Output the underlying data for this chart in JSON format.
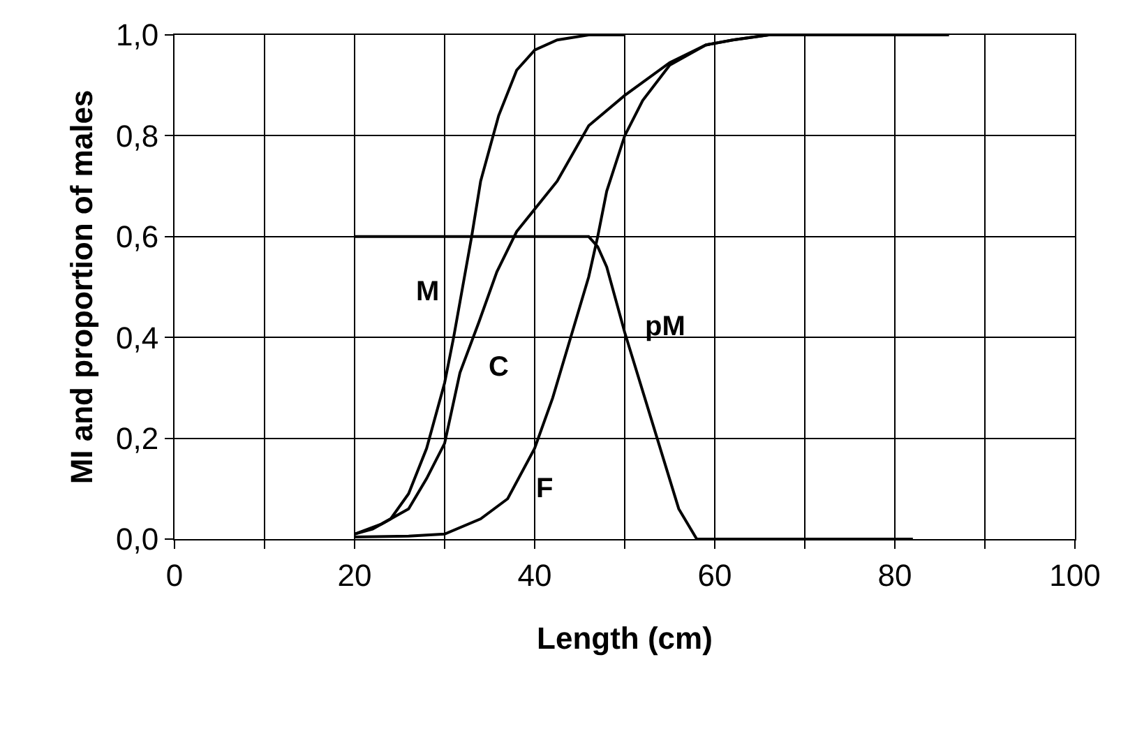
{
  "chart_data": {
    "type": "line",
    "xlabel": "Length (cm)",
    "ylabel": "MI and proportion of males",
    "series": [
      {
        "name": "M",
        "color": "#000000",
        "x": [
          20,
          22,
          24,
          26,
          28,
          30,
          31,
          32,
          33,
          34,
          36,
          38,
          40,
          42.5,
          46,
          50
        ],
        "values": [
          0.01,
          0.02,
          0.04,
          0.09,
          0.18,
          0.31,
          0.4,
          0.5,
          0.6,
          0.71,
          0.84,
          0.93,
          0.97,
          0.99,
          1.0,
          1.0
        ]
      },
      {
        "name": "C",
        "color": "#000000",
        "x": [
          20,
          23,
          26,
          28,
          30,
          31.7,
          33.8,
          35.8,
          38,
          42.5,
          46,
          50,
          55,
          59,
          62,
          66,
          72,
          86
        ],
        "values": [
          0.01,
          0.03,
          0.06,
          0.12,
          0.19,
          0.33,
          0.43,
          0.53,
          0.61,
          0.71,
          0.82,
          0.88,
          0.945,
          0.98,
          0.99,
          1.0,
          1.0,
          1.0
        ]
      },
      {
        "name": "F",
        "color": "#000000",
        "x": [
          20,
          26,
          30,
          34,
          37,
          40,
          42,
          44,
          46,
          47,
          48,
          50,
          52,
          55,
          59,
          62,
          66,
          72,
          86
        ],
        "values": [
          0.004,
          0.006,
          0.01,
          0.04,
          0.08,
          0.18,
          0.28,
          0.4,
          0.52,
          0.6,
          0.69,
          0.8,
          0.87,
          0.94,
          0.98,
          0.99,
          1.0,
          1.0,
          1.0
        ]
      },
      {
        "name": "pM",
        "color": "#000000",
        "x": [
          20,
          46,
          47,
          48,
          50,
          53.6,
          56,
          58,
          82
        ],
        "values": [
          0.6,
          0.6,
          0.58,
          0.54,
          0.41,
          0.2,
          0.06,
          0.0,
          0.0
        ]
      }
    ],
    "xlim": [
      0,
      100
    ],
    "ylim": [
      0,
      1
    ],
    "xticks": [
      0,
      {
        "value": 10,
        "label": null
      },
      20,
      {
        "value": 30,
        "label": null
      },
      40,
      {
        "value": 50,
        "label": null
      },
      60,
      {
        "value": 70,
        "label": null
      },
      80,
      {
        "value": 90,
        "label": null
      },
      100
    ],
    "yticks": [
      {
        "value": 0,
        "label": "0,0"
      },
      {
        "value": 0.2,
        "label": "0,2"
      },
      {
        "value": 0.4,
        "label": "0,4"
      },
      {
        "value": 0.6,
        "label": "0,6"
      },
      {
        "value": 0.8,
        "label": "0,8"
      },
      {
        "value": 1,
        "label": "1,0"
      }
    ],
    "grid": true,
    "legend": false,
    "marker": "none",
    "line_style": "solid"
  }
}
